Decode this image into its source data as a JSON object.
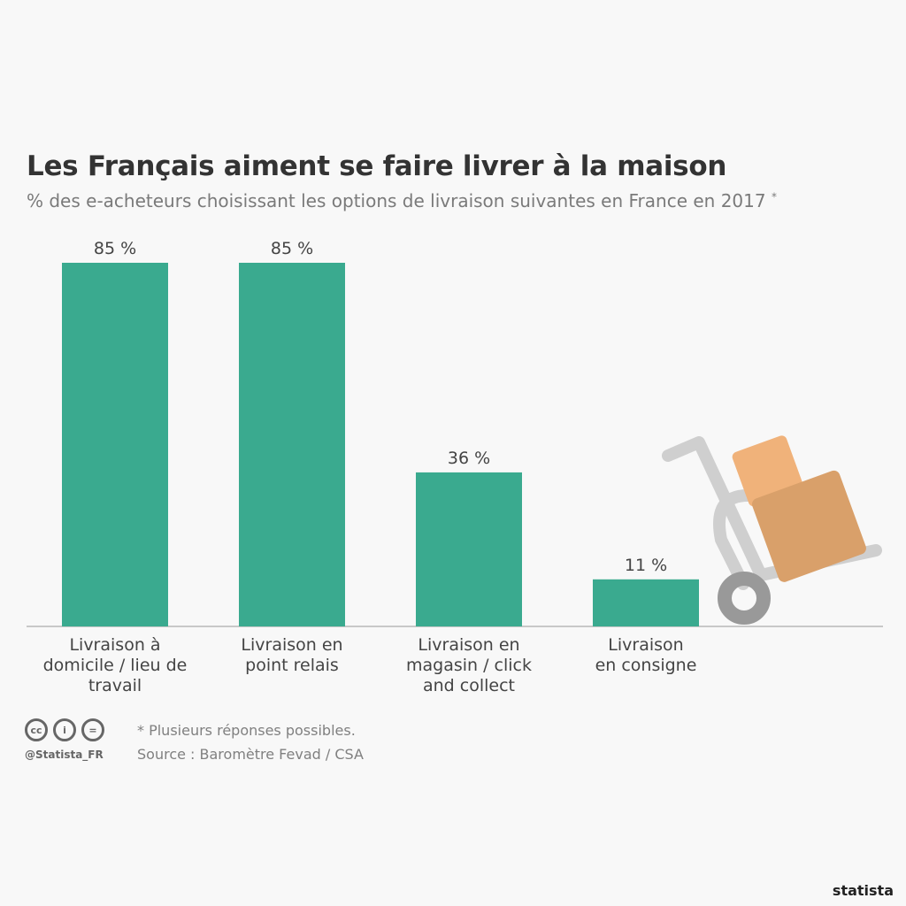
{
  "chart_data": {
    "type": "bar",
    "title": "Les Français aiment se faire livrer à la maison",
    "subtitle": "% des e-acheteurs choisissant les options de livraison suivantes en France en 2017",
    "subtitle_marker": "*",
    "categories": [
      "Livraison à domicile / lieu de travail",
      "Livraison en point relais",
      "Livraison en magasin / click and collect",
      "Livraison en consigne"
    ],
    "category_lines": [
      [
        "Livraison à",
        "domicile / lieu de",
        "travail"
      ],
      [
        "Livraison en",
        "point relais"
      ],
      [
        "Livraison en",
        "magasin / click",
        "and collect"
      ],
      [
        "Livraison",
        "en consigne"
      ]
    ],
    "values": [
      85,
      85,
      36,
      11
    ],
    "value_labels": [
      "85 %",
      "85 %",
      "36 %",
      "11 %"
    ],
    "ylim": [
      0,
      85
    ],
    "xlabel": "",
    "ylabel": "",
    "grid": false,
    "bar_color": "#3aaa8f"
  },
  "footer": {
    "note": "* Plusieurs réponses possibles.",
    "source": "Source : Baromètre Fevad / CSA",
    "handle": "@Statista_FR",
    "license_icons": [
      "cc",
      "i",
      "="
    ],
    "brand": "statista"
  }
}
